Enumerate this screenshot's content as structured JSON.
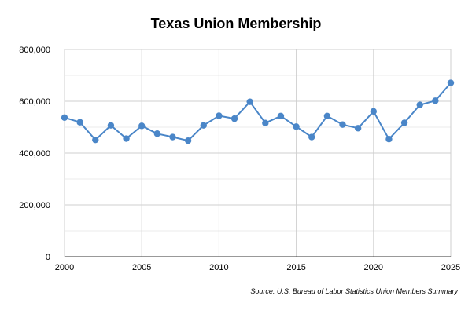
{
  "chart_data": {
    "type": "line",
    "title": "Texas Union Membership",
    "source": "Source: U.S. Bureau of Labor Statistics Union Members Summary",
    "xlabel": "",
    "ylabel": "",
    "xlim": [
      2000,
      2025
    ],
    "ylim": [
      0,
      800000
    ],
    "grid": true,
    "legend": "none",
    "line_color": "#4a86c8",
    "x_ticks": [
      2000,
      2005,
      2010,
      2015,
      2020,
      2025
    ],
    "x_tick_labels": [
      "2000",
      "2005",
      "2010",
      "2015",
      "2020",
      "2025"
    ],
    "y_ticks": [
      0,
      200000,
      400000,
      600000,
      800000
    ],
    "y_tick_labels": [
      "0",
      "200,000",
      "400,000",
      "600,000",
      "800,000"
    ],
    "x": [
      2000,
      2001,
      2002,
      2003,
      2004,
      2005,
      2006,
      2007,
      2008,
      2009,
      2010,
      2011,
      2012,
      2013,
      2014,
      2015,
      2016,
      2017,
      2018,
      2019,
      2020,
      2021,
      2022,
      2023,
      2024,
      2025
    ],
    "series": [
      {
        "values": [
          537000,
          519000,
          451000,
          507000,
          456000,
          505000,
          475000,
          462000,
          448000,
          507000,
          544000,
          533000,
          598000,
          516000,
          543000,
          502000,
          462000,
          543000,
          510000,
          496000,
          561000,
          454000,
          517000,
          586000,
          602000,
          671000
        ]
      }
    ]
  }
}
